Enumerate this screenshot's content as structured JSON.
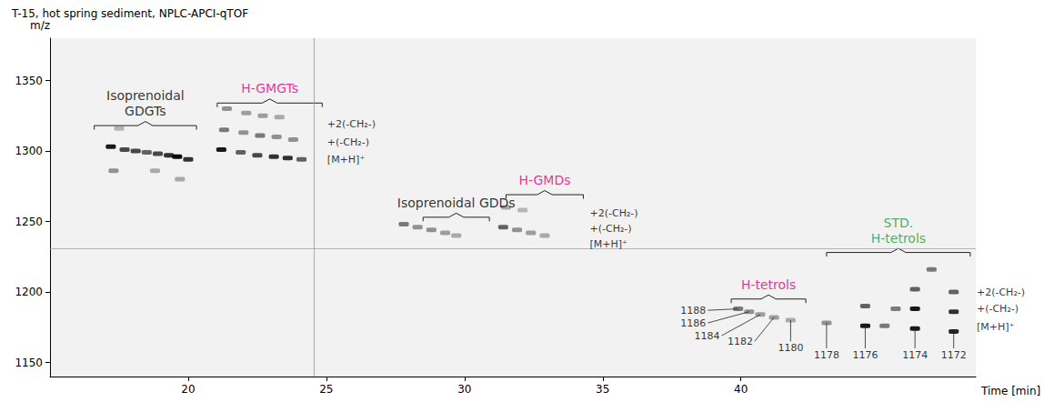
{
  "chart_data": {
    "type": "scatter",
    "title": "T-15, hot spring sediment, NPLC-APCI-qTOF",
    "x_label": "Time [min]",
    "y_label": "m/z",
    "xlim": [
      15,
      48.5
    ],
    "xticks": [
      20,
      25,
      30,
      35,
      40
    ],
    "ylim": [
      1140,
      1380
    ],
    "yticks": [
      1150,
      1200,
      1250,
      1300,
      1350
    ],
    "grid": false,
    "color": "#000000",
    "marker": "roundRect",
    "spots": [
      [
        17.2,
        1303,
        0.9
      ],
      [
        17.7,
        1301,
        0.7
      ],
      [
        18.1,
        1300,
        0.7
      ],
      [
        18.5,
        1299,
        0.6
      ],
      [
        18.9,
        1298,
        0.7
      ],
      [
        19.3,
        1297,
        0.8
      ],
      [
        19.6,
        1296,
        0.95
      ],
      [
        20.0,
        1294,
        0.8
      ],
      [
        17.3,
        1286,
        0.4
      ],
      [
        18.8,
        1286,
        0.3
      ],
      [
        19.7,
        1280,
        0.3
      ],
      [
        17.5,
        1316,
        0.25
      ],
      [
        21.2,
        1301,
        0.9
      ],
      [
        21.9,
        1299,
        0.6
      ],
      [
        22.5,
        1297,
        0.7
      ],
      [
        23.1,
        1296,
        0.8
      ],
      [
        23.6,
        1295,
        0.8
      ],
      [
        24.1,
        1294,
        0.6
      ],
      [
        21.3,
        1315,
        0.5
      ],
      [
        22.0,
        1313,
        0.4
      ],
      [
        22.6,
        1311,
        0.5
      ],
      [
        23.2,
        1310,
        0.4
      ],
      [
        23.8,
        1308,
        0.4
      ],
      [
        21.4,
        1330,
        0.4
      ],
      [
        22.1,
        1327,
        0.35
      ],
      [
        22.7,
        1325,
        0.35
      ],
      [
        23.3,
        1324,
        0.3
      ],
      [
        27.8,
        1248,
        0.5
      ],
      [
        28.3,
        1246,
        0.4
      ],
      [
        28.8,
        1244,
        0.4
      ],
      [
        29.3,
        1242,
        0.35
      ],
      [
        29.7,
        1240,
        0.3
      ],
      [
        31.4,
        1246,
        0.6
      ],
      [
        31.9,
        1244,
        0.4
      ],
      [
        32.4,
        1242,
        0.35
      ],
      [
        32.9,
        1240,
        0.3
      ],
      [
        31.5,
        1260,
        0.3
      ],
      [
        32.1,
        1258,
        0.25
      ],
      [
        39.9,
        1188,
        0.5
      ],
      [
        40.3,
        1186,
        0.4
      ],
      [
        40.7,
        1184,
        0.35
      ],
      [
        41.2,
        1182,
        0.35
      ],
      [
        41.8,
        1180,
        0.3
      ],
      [
        43.1,
        1178,
        0.4
      ],
      [
        44.5,
        1176,
        0.9
      ],
      [
        46.3,
        1174,
        0.9
      ],
      [
        47.7,
        1172,
        0.85
      ],
      [
        45.2,
        1176,
        0.5
      ],
      [
        44.5,
        1190,
        0.6
      ],
      [
        45.6,
        1188,
        0.5
      ],
      [
        46.3,
        1188,
        0.9
      ],
      [
        47.7,
        1186,
        0.8
      ],
      [
        46.3,
        1202,
        0.6
      ],
      [
        47.7,
        1200,
        0.6
      ],
      [
        46.9,
        1216,
        0.5
      ]
    ],
    "streaks": {
      "mz": [
        1231
      ],
      "time": [
        24.55
      ]
    },
    "groups": [
      {
        "text": [
          "Isoprenoidal",
          "GDGTs"
        ],
        "color": "#000000",
        "x": [
          16.6,
          20.3
        ],
        "y": 1318
      },
      {
        "text": [
          "H-GMGTs"
        ],
        "color": "#e4007f",
        "x": [
          21.05,
          24.85
        ],
        "y": 1334
      },
      {
        "text": [
          "Isoprenoidal GDDs"
        ],
        "color": "#000000",
        "x": [
          28.5,
          30.9
        ],
        "y": 1253
      },
      {
        "text": [
          "H-GMDs"
        ],
        "color": "#e4007f",
        "x": [
          31.5,
          34.3
        ],
        "y": 1269
      },
      {
        "text": [
          "H-tetrols"
        ],
        "color": "#e4007f",
        "x": [
          39.65,
          42.35
        ],
        "y": 1195
      },
      {
        "text": [
          "STD.",
          "H-tetrols"
        ],
        "color": "#1a9e3f",
        "x": [
          43.1,
          48.3
        ],
        "y": 1228
      }
    ],
    "row_labels": [
      {
        "x": 24.9,
        "items": [
          {
            "text": "+2(-CH₂-)",
            "y": 1319
          },
          {
            "text": "+(-CH₂-)",
            "y": 1306
          },
          {
            "text": "[M+H]⁺",
            "y": 1294
          }
        ]
      },
      {
        "x": 34.4,
        "items": [
          {
            "text": "+2(-CH₂-)",
            "y": 1256
          },
          {
            "text": "+(-CH₂-)",
            "y": 1245
          },
          {
            "text": "[M+H]⁺",
            "y": 1234
          }
        ]
      },
      {
        "x": 48.4,
        "items": [
          {
            "text": "+2(-CH₂-)",
            "y": 1200
          },
          {
            "text": "+(-CH₂-)",
            "y": 1188
          },
          {
            "text": "[M+H]⁺",
            "y": 1175
          }
        ]
      }
    ],
    "peak_labels": [
      {
        "mz": 1188,
        "time": 39.9,
        "label_at": [
          38.8,
          1187
        ]
      },
      {
        "mz": 1186,
        "time": 40.3,
        "label_at": [
          38.8,
          1178
        ]
      },
      {
        "mz": 1184,
        "time": 40.7,
        "label_at": [
          39.3,
          1169
        ]
      },
      {
        "mz": 1182,
        "time": 41.2,
        "label_at": [
          40.5,
          1165
        ]
      },
      {
        "mz": 1180,
        "time": 41.8,
        "label_at": [
          41.8,
          1165
        ]
      },
      {
        "mz": 1178,
        "time": 43.1,
        "label_at": [
          43.1,
          1160
        ]
      },
      {
        "mz": 1176,
        "time": 44.5,
        "label_at": [
          44.5,
          1160
        ]
      },
      {
        "mz": 1174,
        "time": 46.3,
        "label_at": [
          46.3,
          1160
        ]
      },
      {
        "mz": 1172,
        "time": 47.7,
        "label_at": [
          47.7,
          1160
        ]
      }
    ]
  }
}
